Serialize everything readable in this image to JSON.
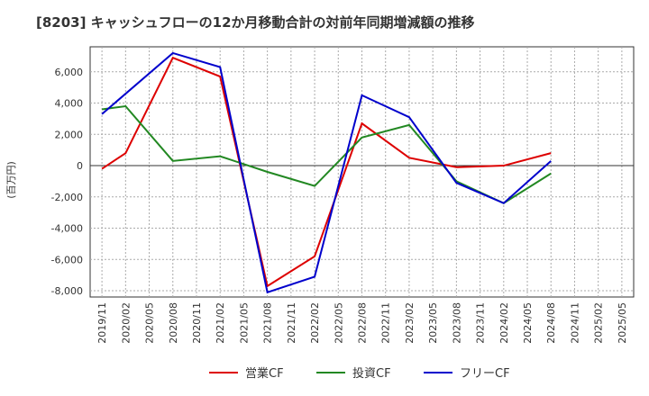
{
  "chart_data": {
    "type": "line",
    "title": "[8203]  キャッシュフローの12か月移動合計の対前年同期増減額の推移",
    "xlabel": "",
    "ylabel": "(百万円)",
    "ylim": [
      -8400,
      7600
    ],
    "yticks": [
      6000,
      4000,
      2000,
      0,
      -2000,
      -4000,
      -6000,
      -8000
    ],
    "ytick_labels": [
      "6,000",
      "4,000",
      "2,000",
      "0",
      "-2,000",
      "-4,000",
      "-6,000",
      "-8,000"
    ],
    "categories": [
      "2019/11",
      "2020/02",
      "2020/05",
      "2020/08",
      "2020/11",
      "2021/02",
      "2021/05",
      "2021/08",
      "2021/11",
      "2022/02",
      "2022/05",
      "2022/08",
      "2022/11",
      "2023/02",
      "2023/05",
      "2023/08",
      "2023/11",
      "2024/02",
      "2024/05",
      "2024/08",
      "2024/11",
      "2025/02",
      "2025/05"
    ],
    "grid": true,
    "legend_position": "bottom",
    "series": [
      {
        "name": "営業CF",
        "color": "#dd0000",
        "points": [
          [
            0,
            -200
          ],
          [
            1,
            800
          ],
          [
            3,
            6900
          ],
          [
            5,
            5700
          ],
          [
            7,
            -7700
          ],
          [
            9,
            -5800
          ],
          [
            11,
            2700
          ],
          [
            13,
            500
          ],
          [
            15,
            -100
          ],
          [
            17,
            0
          ],
          [
            19,
            800
          ]
        ]
      },
      {
        "name": "投資CF",
        "color": "#228822",
        "points": [
          [
            0,
            3600
          ],
          [
            1,
            3800
          ],
          [
            3,
            300
          ],
          [
            5,
            600
          ],
          [
            7,
            -400
          ],
          [
            9,
            -1300
          ],
          [
            11,
            1800
          ],
          [
            13,
            2600
          ],
          [
            15,
            -1000
          ],
          [
            17,
            -2400
          ],
          [
            19,
            -500
          ]
        ]
      },
      {
        "name": "フリーCF",
        "color": "#0000cc",
        "points": [
          [
            0,
            3300
          ],
          [
            3,
            7200
          ],
          [
            5,
            6300
          ],
          [
            7,
            -8100
          ],
          [
            9,
            -7100
          ],
          [
            11,
            4500
          ],
          [
            13,
            3100
          ],
          [
            15,
            -1100
          ],
          [
            17,
            -2400
          ],
          [
            19,
            300
          ]
        ]
      }
    ]
  }
}
